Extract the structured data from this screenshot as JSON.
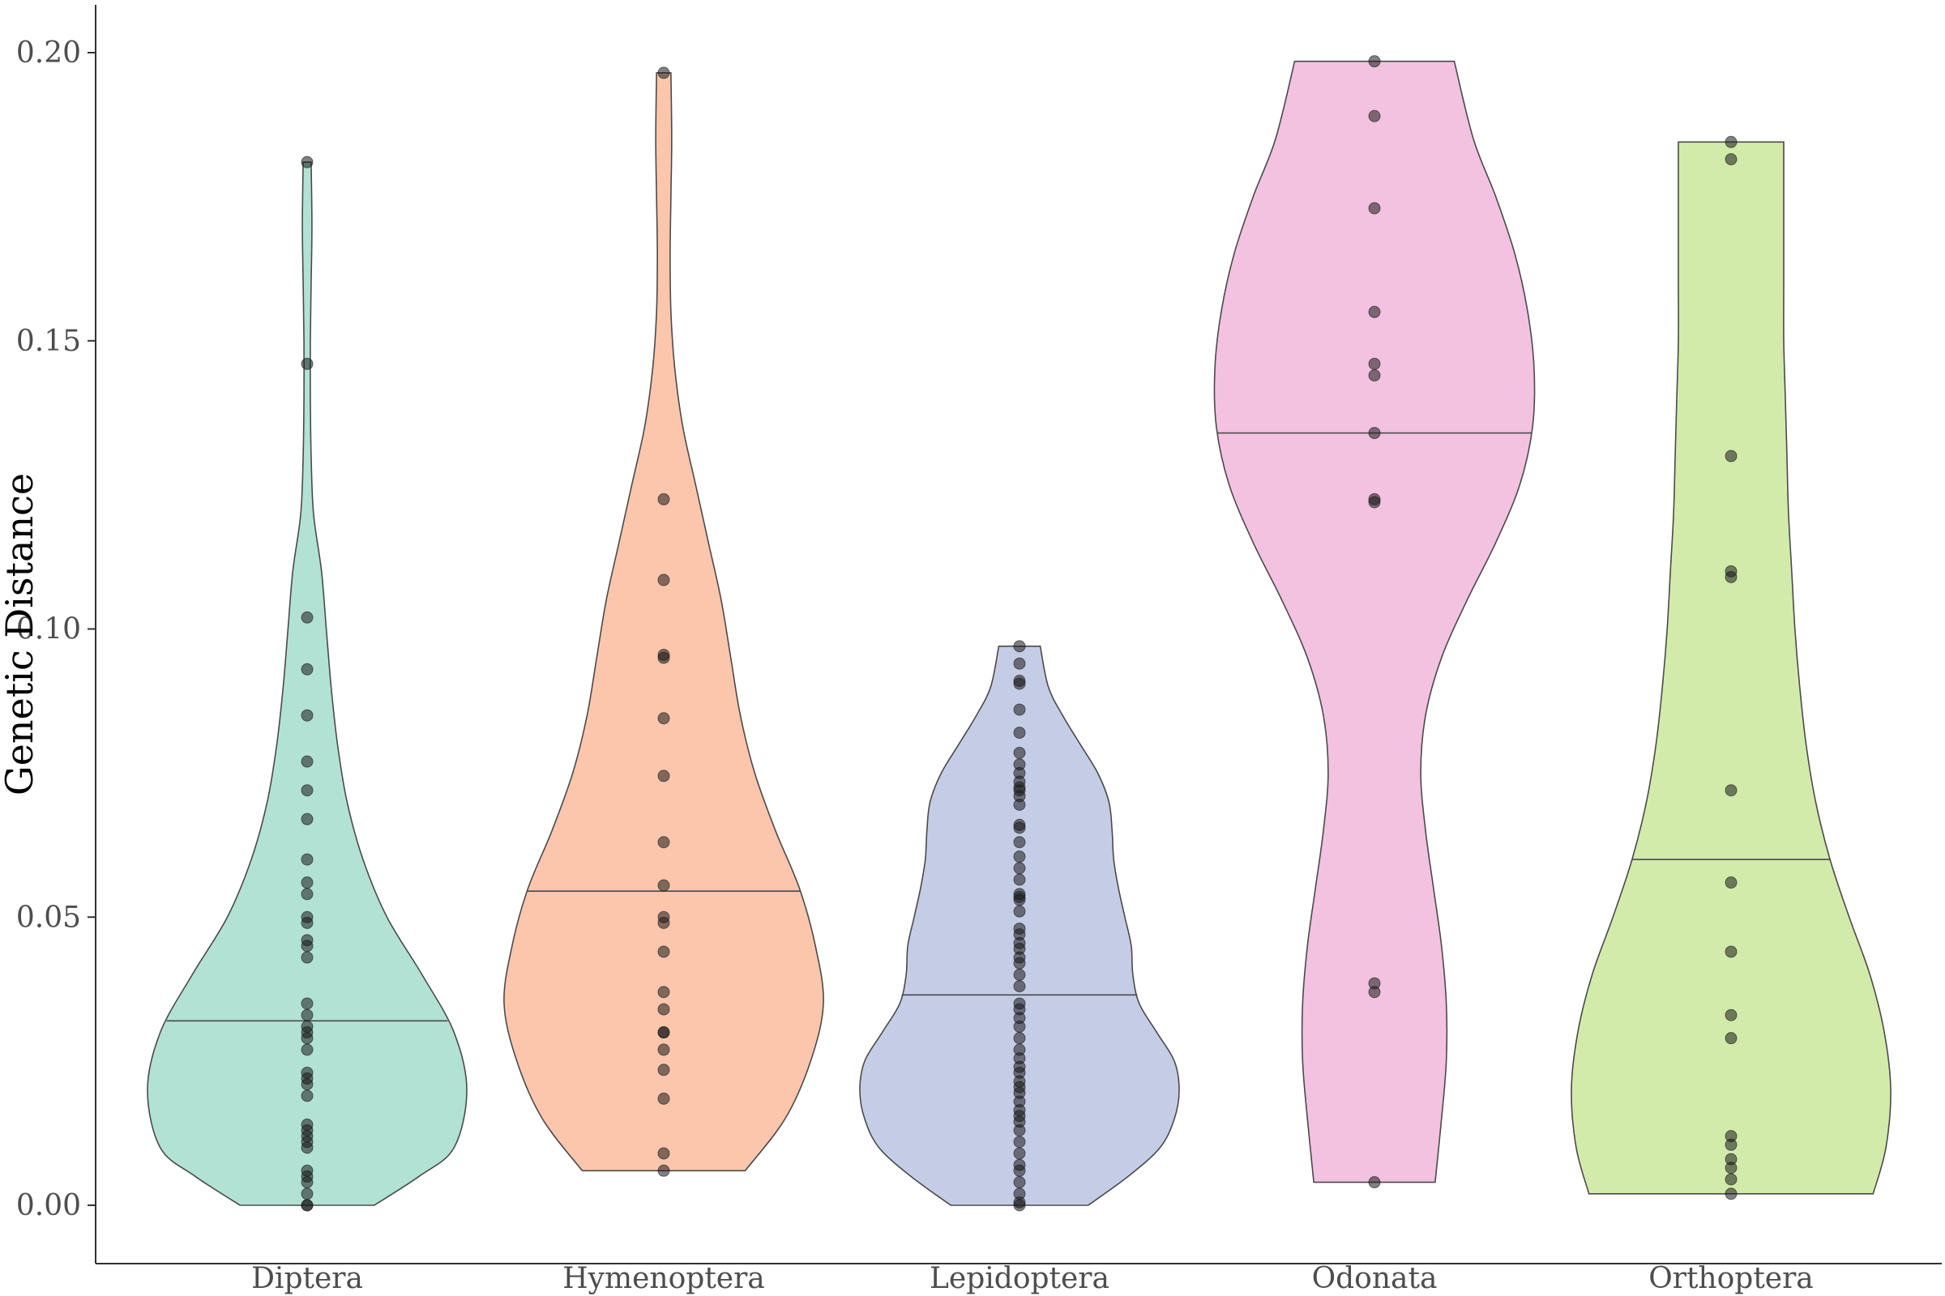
{
  "chart_data": {
    "type": "violin",
    "ylabel": "Genetic Distance",
    "xlabel": "",
    "ylim": [
      -0.01,
      0.208
    ],
    "yticks": [
      "0.00",
      "0.05",
      "0.10",
      "0.15",
      "0.20"
    ],
    "ytick_values": [
      0.0,
      0.05,
      0.1,
      0.15,
      0.2
    ],
    "grid": false,
    "legend": "none",
    "categories": [
      {
        "name": "Diptera",
        "color": "#b2e2d4",
        "median": 0.032,
        "min": 0.0,
        "max": 0.181,
        "density": [
          [
            0.0,
            0.42
          ],
          [
            0.005,
            0.7
          ],
          [
            0.01,
            0.92
          ],
          [
            0.02,
            1.0
          ],
          [
            0.03,
            0.92
          ],
          [
            0.04,
            0.72
          ],
          [
            0.05,
            0.5
          ],
          [
            0.06,
            0.35
          ],
          [
            0.07,
            0.25
          ],
          [
            0.08,
            0.19
          ],
          [
            0.09,
            0.15
          ],
          [
            0.1,
            0.12
          ],
          [
            0.11,
            0.09
          ],
          [
            0.12,
            0.04
          ],
          [
            0.13,
            0.025
          ],
          [
            0.14,
            0.02
          ],
          [
            0.15,
            0.02
          ],
          [
            0.16,
            0.025
          ],
          [
            0.17,
            0.03
          ],
          [
            0.181,
            0.025
          ]
        ],
        "points": [
          0.181,
          0.146,
          0.102,
          0.093,
          0.085,
          0.077,
          0.072,
          0.067,
          0.06,
          0.056,
          0.054,
          0.05,
          0.049,
          0.046,
          0.045,
          0.043,
          0.035,
          0.033,
          0.031,
          0.03,
          0.029,
          0.027,
          0.023,
          0.022,
          0.021,
          0.019,
          0.014,
          0.013,
          0.012,
          0.011,
          0.01,
          0.006,
          0.005,
          0.004,
          0.002,
          0.0,
          0.0
        ]
      },
      {
        "name": "Hymenoptera",
        "color": "#fcc6ad",
        "median": 0.0545,
        "min": 0.006,
        "max": 0.1965,
        "density": [
          [
            0.006,
            0.51
          ],
          [
            0.015,
            0.76
          ],
          [
            0.025,
            0.92
          ],
          [
            0.035,
            1.0
          ],
          [
            0.045,
            0.95
          ],
          [
            0.055,
            0.85
          ],
          [
            0.065,
            0.7
          ],
          [
            0.075,
            0.57
          ],
          [
            0.085,
            0.48
          ],
          [
            0.095,
            0.42
          ],
          [
            0.105,
            0.36
          ],
          [
            0.115,
            0.28
          ],
          [
            0.125,
            0.2
          ],
          [
            0.135,
            0.12
          ],
          [
            0.145,
            0.07
          ],
          [
            0.155,
            0.045
          ],
          [
            0.165,
            0.04
          ],
          [
            0.175,
            0.045
          ],
          [
            0.185,
            0.05
          ],
          [
            0.1965,
            0.045
          ]
        ],
        "points": [
          0.1965,
          0.1225,
          0.1085,
          0.0955,
          0.095,
          0.0845,
          0.0745,
          0.063,
          0.0555,
          0.05,
          0.049,
          0.044,
          0.037,
          0.034,
          0.03,
          0.03,
          0.027,
          0.0235,
          0.0185,
          0.009,
          0.006
        ]
      },
      {
        "name": "Lepidoptera",
        "color": "#c5cde6",
        "median": 0.0365,
        "min": 0.0,
        "max": 0.097,
        "density": [
          [
            0.0,
            0.43
          ],
          [
            0.005,
            0.68
          ],
          [
            0.01,
            0.88
          ],
          [
            0.015,
            0.97
          ],
          [
            0.02,
            1.0
          ],
          [
            0.025,
            0.97
          ],
          [
            0.03,
            0.86
          ],
          [
            0.035,
            0.75
          ],
          [
            0.04,
            0.71
          ],
          [
            0.045,
            0.7
          ],
          [
            0.05,
            0.66
          ],
          [
            0.055,
            0.62
          ],
          [
            0.06,
            0.59
          ],
          [
            0.065,
            0.58
          ],
          [
            0.07,
            0.56
          ],
          [
            0.075,
            0.49
          ],
          [
            0.08,
            0.38
          ],
          [
            0.085,
            0.27
          ],
          [
            0.09,
            0.18
          ],
          [
            0.097,
            0.13
          ]
        ],
        "points": [
          0.097,
          0.094,
          0.091,
          0.0905,
          0.086,
          0.082,
          0.0785,
          0.0765,
          0.075,
          0.0735,
          0.0725,
          0.072,
          0.071,
          0.0695,
          0.066,
          0.0655,
          0.063,
          0.0605,
          0.0585,
          0.0565,
          0.054,
          0.0535,
          0.053,
          0.051,
          0.048,
          0.047,
          0.0455,
          0.0445,
          0.043,
          0.042,
          0.04,
          0.038,
          0.035,
          0.034,
          0.0325,
          0.031,
          0.029,
          0.027,
          0.0255,
          0.024,
          0.023,
          0.0215,
          0.0205,
          0.0195,
          0.018,
          0.0165,
          0.0155,
          0.0145,
          0.013,
          0.011,
          0.009,
          0.007,
          0.006,
          0.004,
          0.002,
          0.0005,
          0.0
        ]
      },
      {
        "name": "Odonata",
        "color": "#f2c2e0",
        "median": 0.134,
        "min": 0.004,
        "max": 0.1985,
        "density": [
          [
            0.004,
            0.38
          ],
          [
            0.015,
            0.42
          ],
          [
            0.025,
            0.45
          ],
          [
            0.035,
            0.45
          ],
          [
            0.045,
            0.42
          ],
          [
            0.055,
            0.37
          ],
          [
            0.065,
            0.32
          ],
          [
            0.075,
            0.29
          ],
          [
            0.085,
            0.32
          ],
          [
            0.095,
            0.42
          ],
          [
            0.105,
            0.58
          ],
          [
            0.115,
            0.76
          ],
          [
            0.125,
            0.91
          ],
          [
            0.135,
            0.99
          ],
          [
            0.145,
            1.0
          ],
          [
            0.155,
            0.96
          ],
          [
            0.165,
            0.88
          ],
          [
            0.175,
            0.76
          ],
          [
            0.185,
            0.62
          ],
          [
            0.1985,
            0.5
          ]
        ],
        "points": [
          0.1985,
          0.189,
          0.173,
          0.155,
          0.146,
          0.144,
          0.134,
          0.1225,
          0.122,
          0.0385,
          0.037,
          0.004
        ]
      },
      {
        "name": "Orthoptera",
        "color": "#d3ebaa",
        "median": 0.06,
        "min": 0.002,
        "max": 0.1845,
        "density": [
          [
            0.002,
            0.89
          ],
          [
            0.01,
            0.97
          ],
          [
            0.02,
            1.0
          ],
          [
            0.03,
            0.96
          ],
          [
            0.04,
            0.87
          ],
          [
            0.05,
            0.74
          ],
          [
            0.06,
            0.62
          ],
          [
            0.07,
            0.53
          ],
          [
            0.08,
            0.47
          ],
          [
            0.09,
            0.43
          ],
          [
            0.1,
            0.4
          ],
          [
            0.11,
            0.38
          ],
          [
            0.12,
            0.36
          ],
          [
            0.13,
            0.35
          ],
          [
            0.14,
            0.34
          ],
          [
            0.15,
            0.33
          ],
          [
            0.16,
            0.33
          ],
          [
            0.17,
            0.33
          ],
          [
            0.1845,
            0.33
          ]
        ],
        "points": [
          0.1845,
          0.1815,
          0.13,
          0.11,
          0.109,
          0.072,
          0.056,
          0.044,
          0.033,
          0.029,
          0.012,
          0.0105,
          0.008,
          0.0065,
          0.0045,
          0.002
        ]
      }
    ]
  }
}
